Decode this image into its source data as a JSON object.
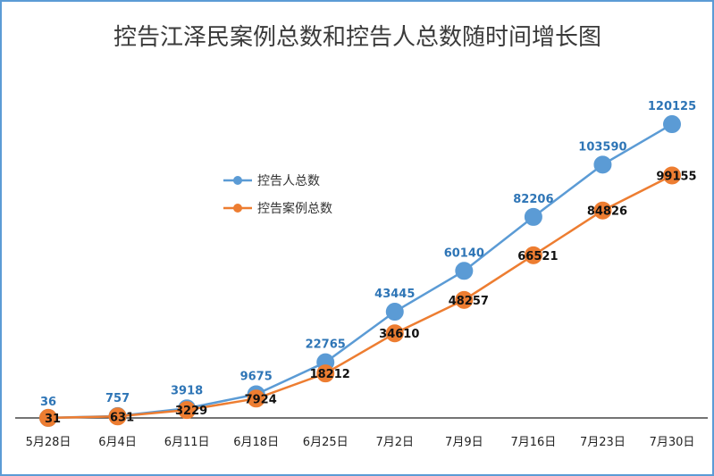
{
  "chart_data": {
    "type": "line",
    "title": "控告江泽民案例总数和控告人总数随时间增长图",
    "categories": [
      "5月28日",
      "6月4日",
      "6月11日",
      "6月18日",
      "6月25日",
      "7月2日",
      "7月9日",
      "7月16日",
      "7月23日",
      "7月30日"
    ],
    "series": [
      {
        "name": "控告人总数",
        "color": "#5b9bd5",
        "label_color": "#2e75b6",
        "values": [
          36,
          757,
          3918,
          9675,
          22765,
          43445,
          60140,
          82206,
          103590,
          120125
        ]
      },
      {
        "name": "控告案例总数",
        "color": "#ed7d31",
        "label_color": "#111111",
        "values": [
          31,
          631,
          3229,
          7924,
          18212,
          34610,
          48257,
          66521,
          84826,
          99155
        ]
      }
    ],
    "ylim": [
      0,
      130000
    ],
    "grid": false,
    "legend": "upper-left-center"
  }
}
